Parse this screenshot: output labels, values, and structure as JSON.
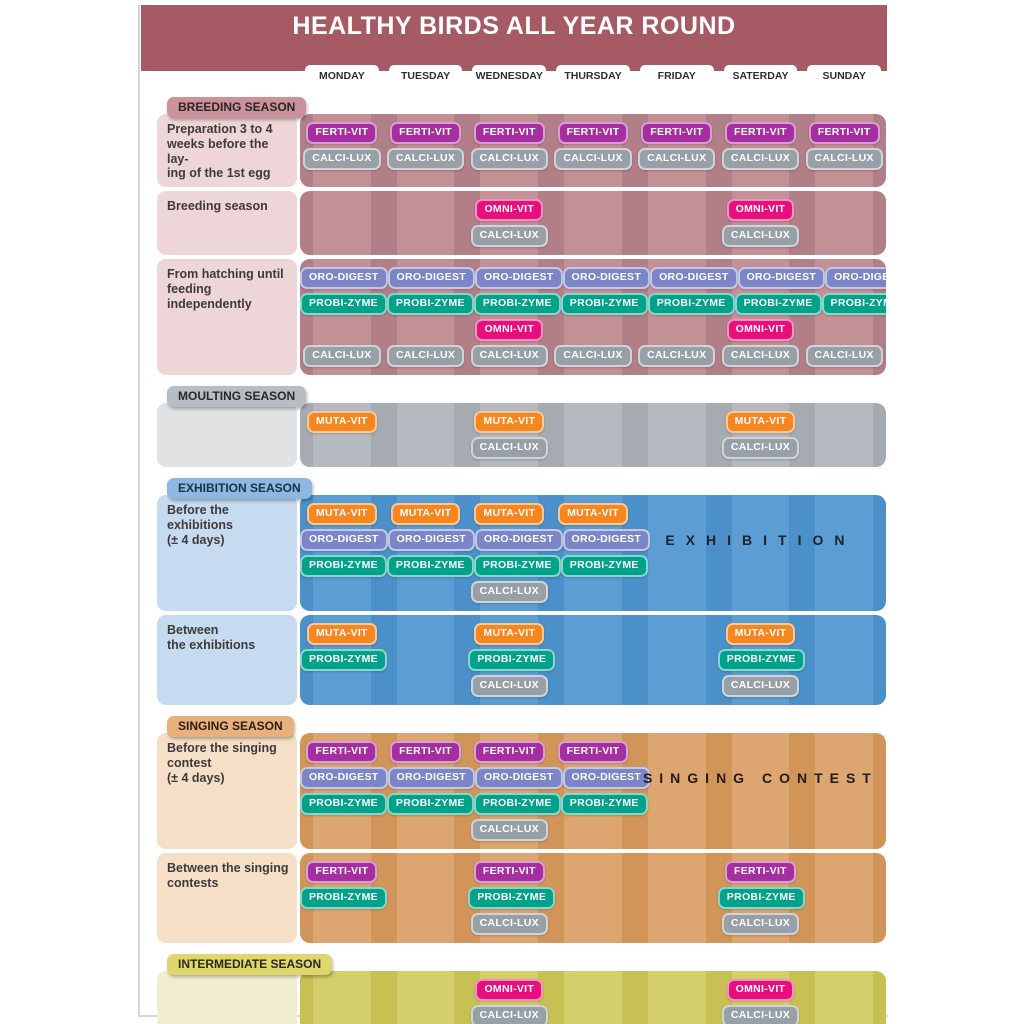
{
  "page": {
    "title": "HEALTHY BIRDS ALL YEAR ROUND",
    "header_color": "#a65b64",
    "days": [
      "MONDAY",
      "TUESDAY",
      "WEDNESDAY",
      "THURSDAY",
      "FRIDAY",
      "SATERDAY",
      "SUNDAY"
    ]
  },
  "products": {
    "FERTI-VIT": {
      "color": "#a62ea1"
    },
    "OMNI-VIT": {
      "color": "#e80f7d"
    },
    "CALCI-LUX": {
      "color": "#98a0a7"
    },
    "ORO-DIGEST": {
      "color": "#7b85c8"
    },
    "PROBI-ZYME": {
      "color": "#00a289"
    },
    "MUTA-VIT": {
      "color": "#f6861f"
    }
  },
  "sections": [
    {
      "id": "breeding",
      "badge": "BREEDING SEASON",
      "colors": {
        "badge": "#ca929a",
        "badge_text": "#2e2427",
        "label": "#eed5d7",
        "grid_light": "#c39096",
        "grid_dark": "#b27f88"
      },
      "rows": [
        {
          "label": "Preparation 3 to 4\nweeks before the lay-\ning of the 1st egg",
          "lines": [
            {
              "product": "FERTI-VIT",
              "days": [
                1,
                2,
                3,
                4,
                5,
                6,
                7
              ]
            },
            {
              "product": "CALCI-LUX",
              "days": [
                1,
                2,
                3,
                4,
                5,
                6,
                7
              ]
            }
          ]
        },
        {
          "label": "Breeding season",
          "lines": [
            {
              "product": "OMNI-VIT",
              "days": [
                3,
                6
              ]
            },
            {
              "product": "CALCI-LUX",
              "days": [
                3,
                6
              ]
            }
          ]
        },
        {
          "label": "From hatching until\nfeeding independently",
          "lines": [
            {
              "product": "ORO-DIGEST",
              "days": [
                1,
                2,
                3,
                4,
                5,
                6,
                7
              ]
            },
            {
              "product": "PROBI-ZYME",
              "days": [
                1,
                2,
                3,
                4,
                5,
                6,
                7
              ]
            },
            {
              "product": "OMNI-VIT",
              "days": [
                3,
                6
              ]
            },
            {
              "product": "CALCI-LUX",
              "days": [
                1,
                2,
                3,
                4,
                5,
                6,
                7
              ]
            }
          ]
        }
      ]
    },
    {
      "id": "moulting",
      "badge": "MOULTING SEASON",
      "colors": {
        "badge": "#b8bdc3",
        "badge_text": "#26282b",
        "label": "#e0e2e4",
        "grid_light": "#b4bac0",
        "grid_dark": "#a5abb1"
      },
      "rows": [
        {
          "label": "",
          "lines": [
            {
              "product": "MUTA-VIT",
              "days": [
                1,
                3,
                6
              ]
            },
            {
              "product": "CALCI-LUX",
              "days": [
                3,
                6
              ]
            }
          ]
        }
      ]
    },
    {
      "id": "exhibition",
      "badge": "EXHIBITION SEASON",
      "colors": {
        "badge": "#8eb8e0",
        "badge_text": "#19314d",
        "label": "#c6dbf0",
        "grid_light": "#5c9ed4",
        "grid_dark": "#4b90c9"
      },
      "rows": [
        {
          "label": "Before the exhibitions\n(±  4 days)",
          "banner": {
            "text": "EXHIBITION",
            "line": 2,
            "span_days": [
              5,
              6,
              7
            ],
            "color": "#1d2430"
          },
          "lines": [
            {
              "product": "MUTA-VIT",
              "days": [
                1,
                2,
                3,
                4
              ]
            },
            {
              "product": "ORO-DIGEST",
              "days": [
                1,
                2,
                3,
                4
              ]
            },
            {
              "product": "PROBI-ZYME",
              "days": [
                1,
                2,
                3,
                4
              ]
            },
            {
              "product": "CALCI-LUX",
              "days": [
                3
              ]
            }
          ]
        },
        {
          "label": "Between\nthe exhibitions",
          "lines": [
            {
              "product": "MUTA-VIT",
              "days": [
                1,
                3,
                6
              ]
            },
            {
              "product": "PROBI-ZYME",
              "days": [
                1,
                3,
                6
              ]
            },
            {
              "product": "CALCI-LUX",
              "days": [
                3,
                6
              ]
            }
          ]
        }
      ]
    },
    {
      "id": "singing",
      "badge": "SINGING SEASON",
      "colors": {
        "badge": "#e7b07c",
        "badge_text": "#2b2014",
        "label": "#f5dfc7",
        "grid_light": "#dda56f",
        "grid_dark": "#d19559"
      },
      "rows": [
        {
          "label": "Before the singing\ncontest\n(±  4 days)",
          "banner": {
            "text": "SINGING CONTEST",
            "line": 2,
            "span_days": [
              5,
              6,
              7
            ],
            "color": "#241c12"
          },
          "lines": [
            {
              "product": "FERTI-VIT",
              "days": [
                1,
                2,
                3,
                4
              ]
            },
            {
              "product": "ORO-DIGEST",
              "days": [
                1,
                2,
                3,
                4
              ]
            },
            {
              "product": "PROBI-ZYME",
              "days": [
                1,
                2,
                3,
                4
              ]
            },
            {
              "product": "CALCI-LUX",
              "days": [
                3
              ]
            }
          ]
        },
        {
          "label": "Between the singing\ncontests",
          "lines": [
            {
              "product": "FERTI-VIT",
              "days": [
                1,
                3,
                6
              ]
            },
            {
              "product": "PROBI-ZYME",
              "days": [
                1,
                3,
                6
              ]
            },
            {
              "product": "CALCI-LUX",
              "days": [
                3,
                6
              ]
            }
          ]
        }
      ]
    },
    {
      "id": "intermediate",
      "badge": "INTERMEDIATE SEASON",
      "colors": {
        "badge": "#ddd76d",
        "badge_text": "#2b2a16",
        "label": "#f0eecf",
        "grid_light": "#d4ce6d",
        "grid_dark": "#c7c153"
      },
      "rows": [
        {
          "label": "",
          "lines": [
            {
              "product": "OMNI-VIT",
              "days": [
                3,
                6
              ]
            },
            {
              "product": "CALCI-LUX",
              "days": [
                3,
                6
              ]
            }
          ]
        }
      ]
    }
  ]
}
